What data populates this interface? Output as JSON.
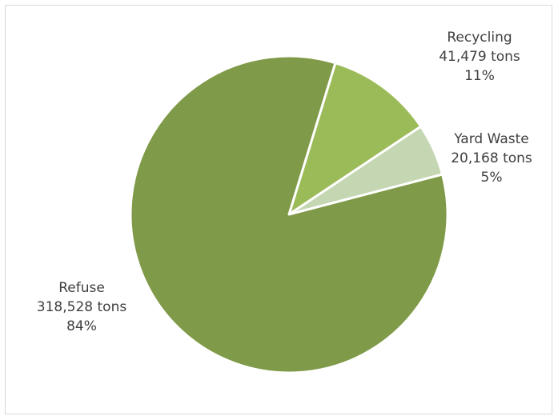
{
  "chart_data": {
    "type": "pie",
    "slices": [
      {
        "label": "Recycling",
        "value": 41479,
        "value_text": "41,479 tons",
        "percent_text": "11%",
        "color": "#9bbb59"
      },
      {
        "label": "Yard Waste",
        "value": 20168,
        "value_text": "20,168 tons",
        "percent_text": "5%",
        "color": "#c4d7b2"
      },
      {
        "label": "Refuse",
        "value": 318528,
        "value_text": "318,528 tons",
        "percent_text": "84%",
        "color": "#7f9a48"
      }
    ],
    "start_angle_deg": 17,
    "direction": "clockwise",
    "legend": "none",
    "label_placement": "outside"
  }
}
